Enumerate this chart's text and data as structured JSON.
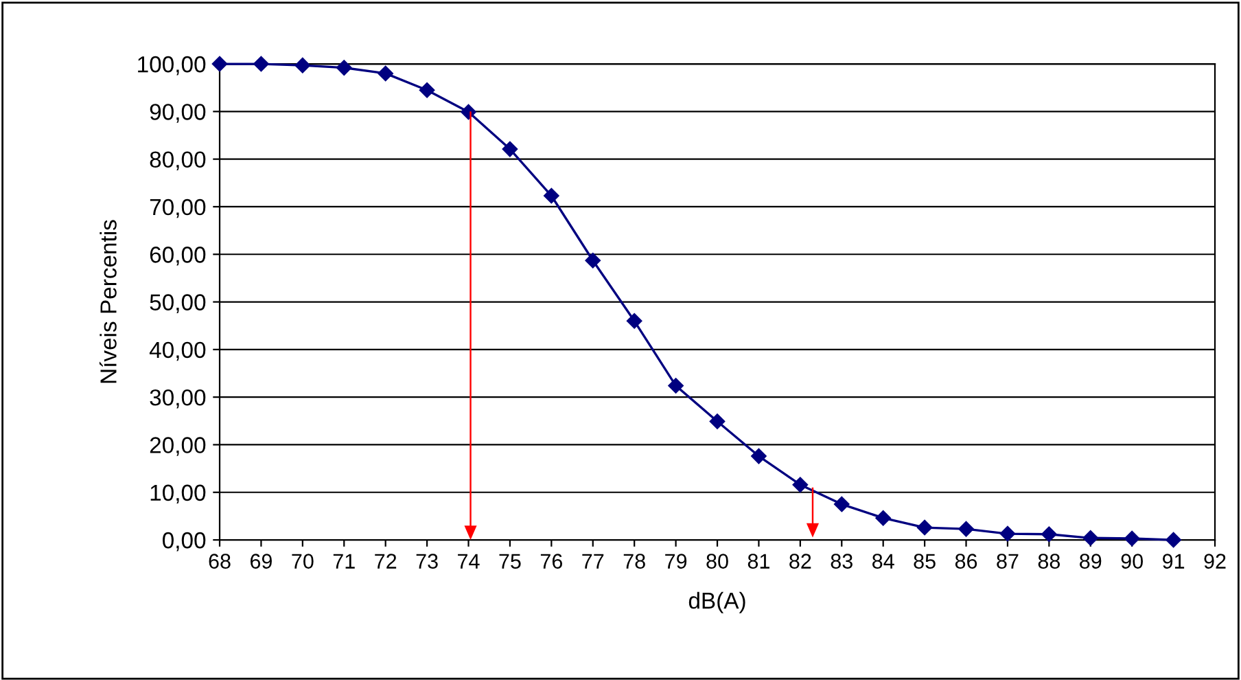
{
  "chart_data": {
    "type": "line",
    "xlabel": "dB(A)",
    "ylabel": "Níveis Percentis",
    "x": [
      68,
      69,
      70,
      71,
      72,
      73,
      74,
      75,
      76,
      77,
      78,
      79,
      80,
      81,
      82,
      83,
      84,
      85,
      86,
      87,
      88,
      89,
      90,
      91
    ],
    "series": [
      {
        "color": "#000080",
        "values": [
          100,
          100,
          99.7,
          99.2,
          98,
          94.5,
          89.9,
          82.1,
          72.3,
          58.7,
          46,
          32.4,
          24.9,
          17.6,
          11.6,
          7.5,
          4.6,
          2.6,
          2.3,
          1.3,
          1.2,
          0.4,
          0.3,
          0
        ]
      }
    ],
    "xlim": [
      68,
      92
    ],
    "xticks": [
      68,
      69,
      70,
      71,
      72,
      73,
      74,
      75,
      76,
      77,
      78,
      79,
      80,
      81,
      82,
      83,
      84,
      85,
      86,
      87,
      88,
      89,
      90,
      91,
      92
    ],
    "ylim": [
      0,
      100
    ],
    "yticks": [
      {
        "value": 0,
        "label": "0,00"
      },
      {
        "value": 10,
        "label": "10,00"
      },
      {
        "value": 20,
        "label": "20,00"
      },
      {
        "value": 30,
        "label": "30,00"
      },
      {
        "value": 40,
        "label": "40,00"
      },
      {
        "value": 50,
        "label": "50,00"
      },
      {
        "value": 60,
        "label": "60,00"
      },
      {
        "value": 70,
        "label": "70,00"
      },
      {
        "value": 80,
        "label": "80,00"
      },
      {
        "value": 90,
        "label": "90,00"
      },
      {
        "value": 100,
        "label": "100,00"
      }
    ],
    "grid": "y",
    "marker": "diamond",
    "line_style": "solid",
    "legend": false
  }
}
